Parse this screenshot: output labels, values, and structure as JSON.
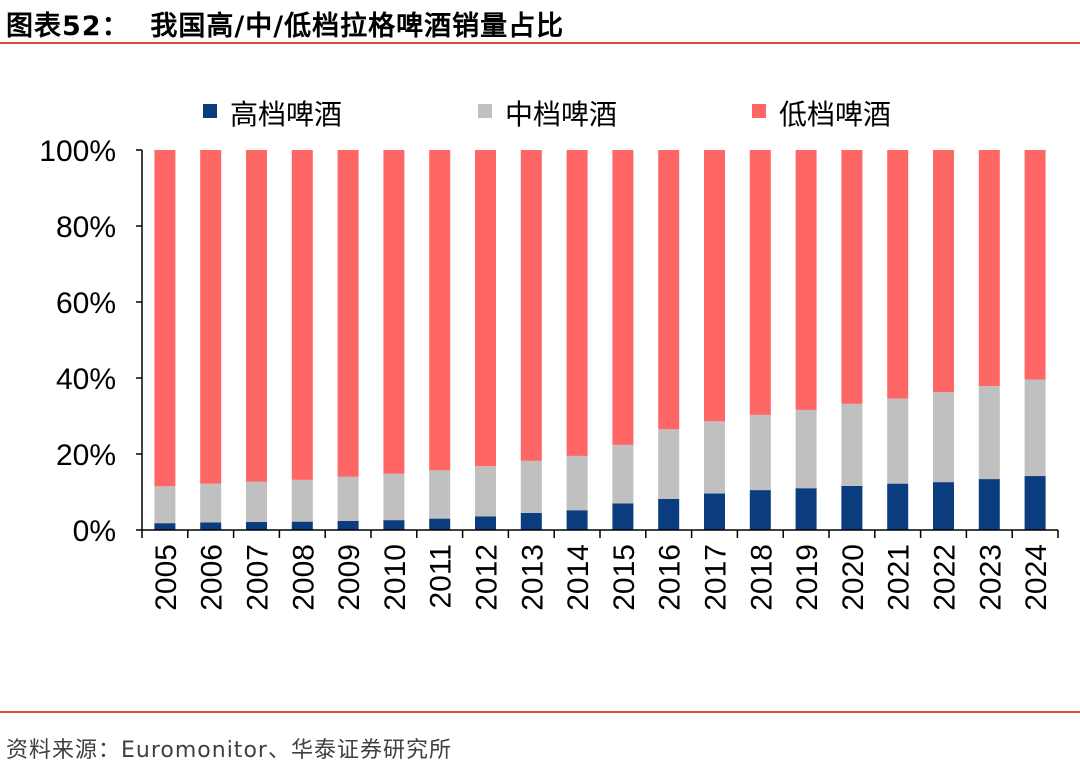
{
  "header": {
    "title": "图表52：  我国高/中/低档拉格啤酒销量占比"
  },
  "footer": {
    "source": "资料来源：Euromonitor、华泰证券研究所"
  },
  "chart_data": {
    "type": "bar",
    "stacked": true,
    "title": "我国高/中/低档拉格啤酒销量占比",
    "xlabel": "",
    "ylabel": "",
    "ylim": [
      0,
      100
    ],
    "yticks": [
      "0%",
      "20%",
      "40%",
      "60%",
      "80%",
      "100%"
    ],
    "categories": [
      "2005",
      "2006",
      "2007",
      "2008",
      "2009",
      "2010",
      "2011",
      "2012",
      "2013",
      "2014",
      "2015",
      "2016",
      "2017",
      "2018",
      "2019",
      "2020",
      "2021",
      "2022",
      "2023",
      "2024"
    ],
    "series": [
      {
        "name": "高档啤酒",
        "color": "#0b3c7d",
        "values": [
          1.8,
          2.0,
          2.1,
          2.2,
          2.4,
          2.6,
          3.0,
          3.6,
          4.5,
          5.2,
          7.0,
          8.2,
          9.6,
          10.5,
          11.0,
          11.6,
          12.2,
          12.6,
          13.4,
          14.2
        ]
      },
      {
        "name": "中档啤酒",
        "color": "#c0c0c0",
        "values": [
          9.7,
          10.2,
          10.6,
          11.0,
          11.6,
          12.2,
          12.7,
          13.2,
          13.7,
          14.3,
          15.4,
          18.3,
          19.0,
          19.8,
          20.6,
          21.6,
          22.4,
          23.7,
          24.5,
          25.4
        ]
      },
      {
        "name": "低档啤酒",
        "color": "#ff6666",
        "values": [
          88.5,
          87.8,
          87.3,
          86.8,
          86.0,
          85.2,
          84.3,
          83.2,
          81.8,
          80.5,
          77.6,
          73.5,
          71.4,
          69.7,
          68.4,
          66.8,
          65.4,
          63.7,
          62.1,
          60.4
        ]
      }
    ],
    "legend": {
      "position": "top"
    }
  }
}
